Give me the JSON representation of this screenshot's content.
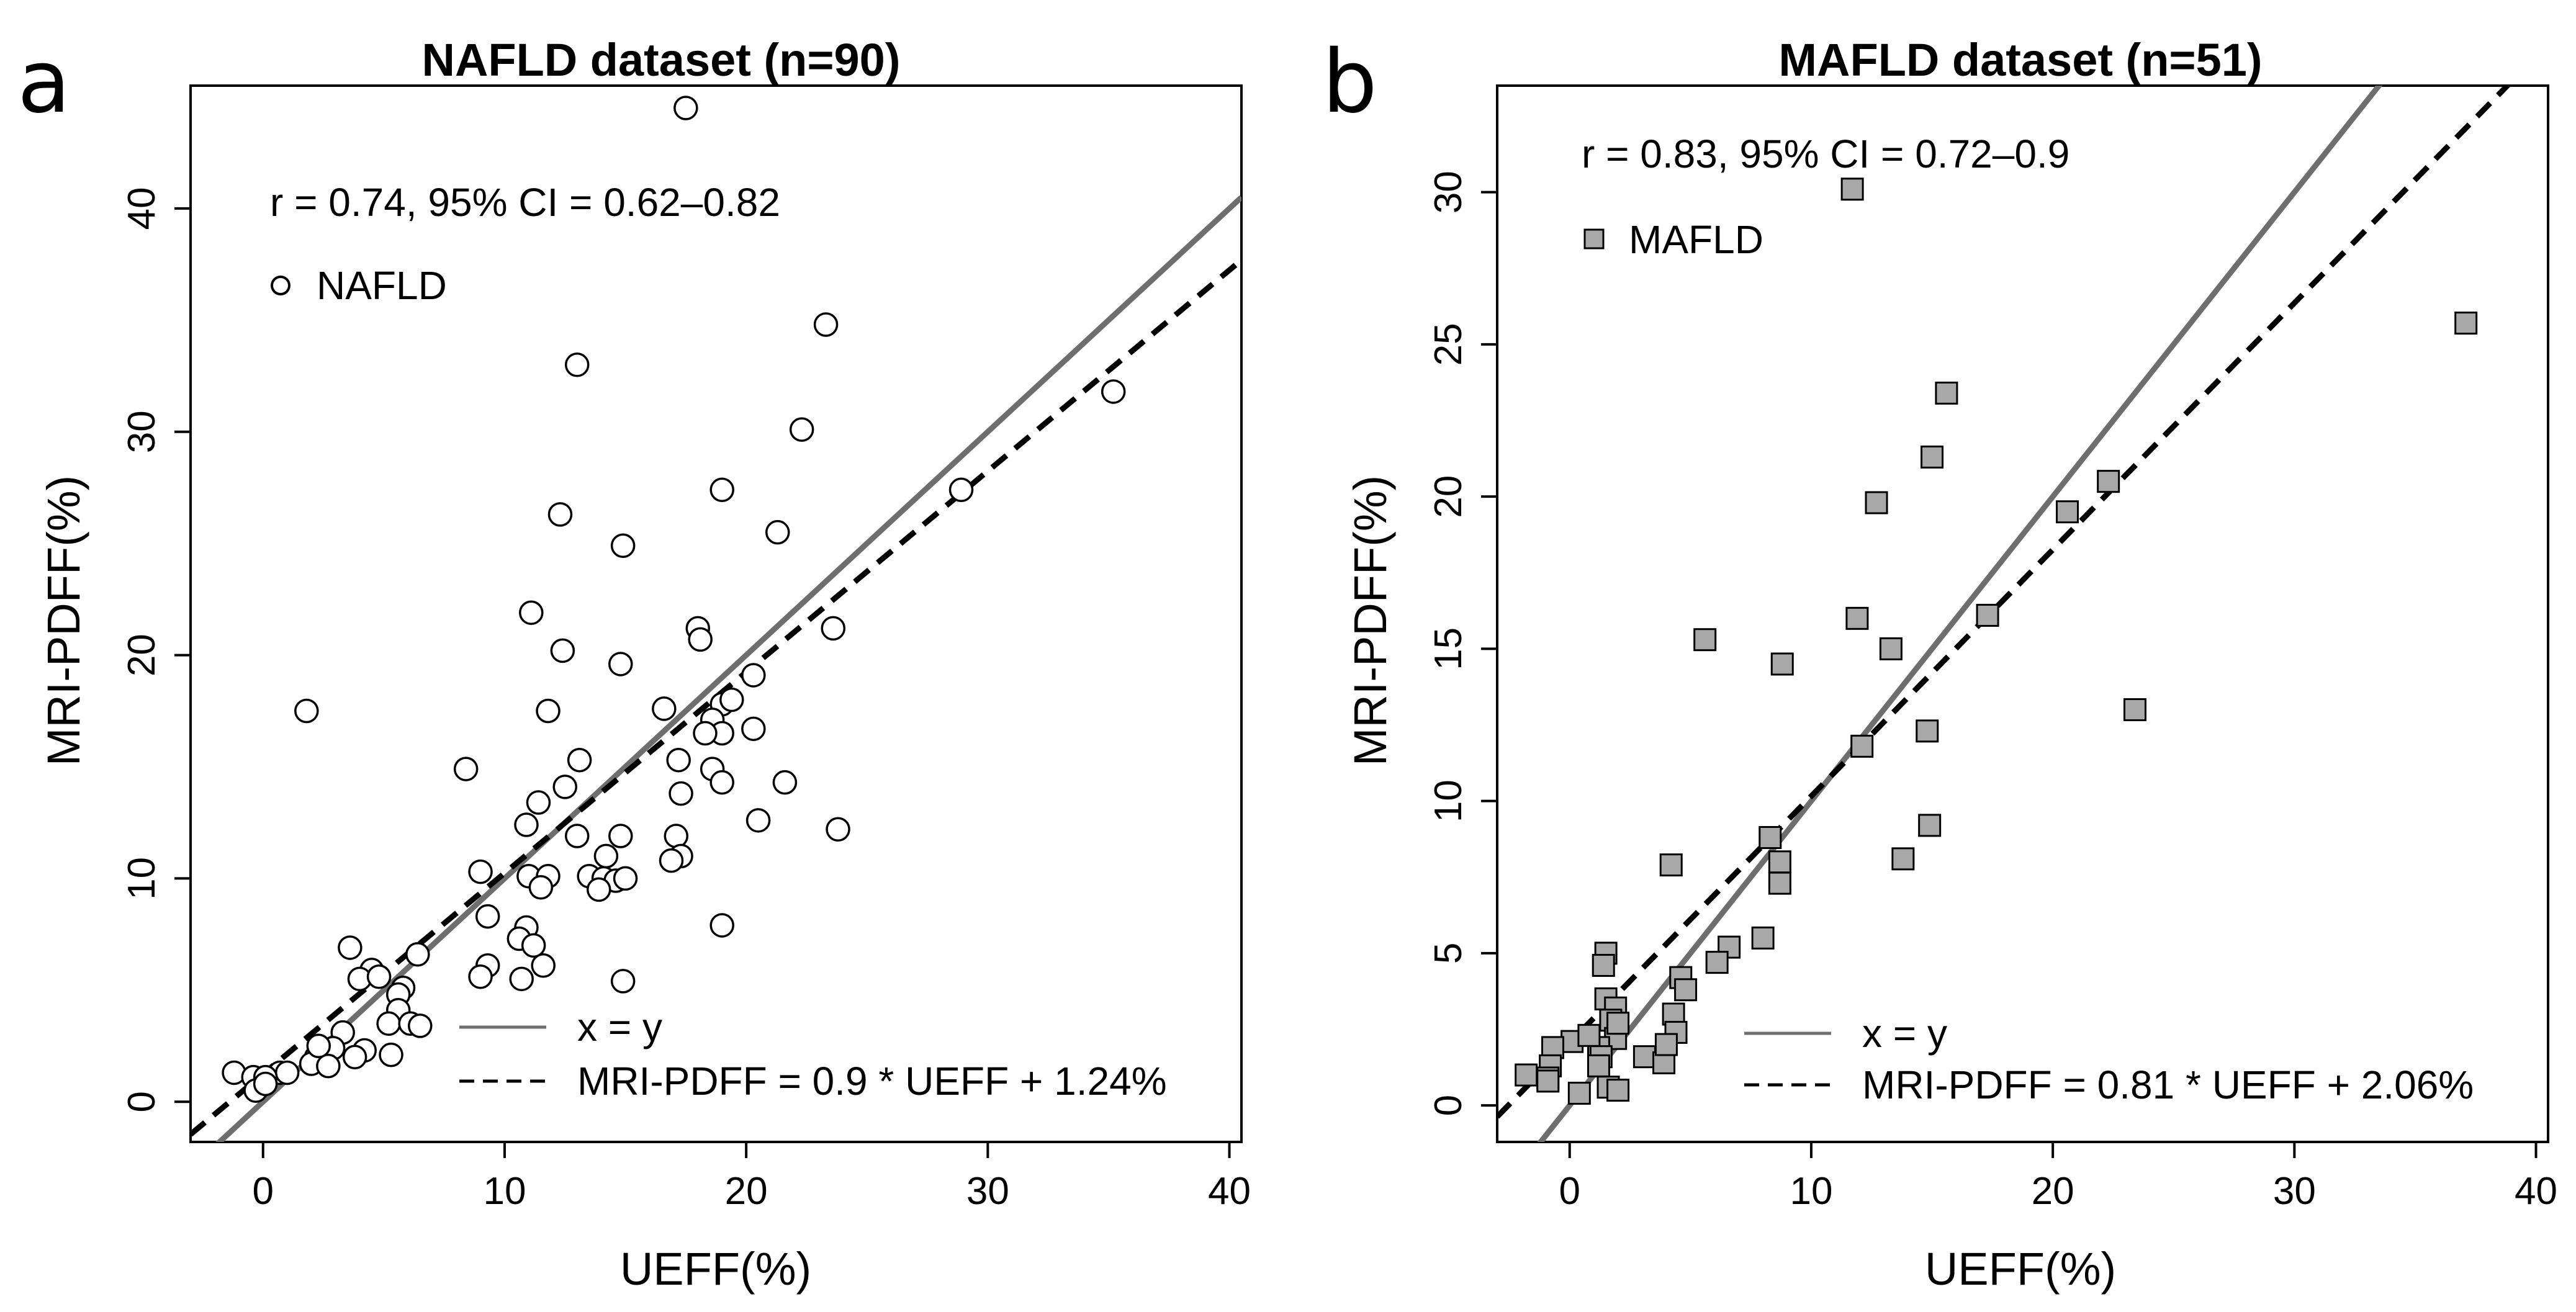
{
  "figure": {
    "panels": [
      {
        "letter": "a",
        "title": "NAFLD dataset (n=90)",
        "xlabel": "UEFF(%)",
        "ylabel": "MRI-PDFF(%)",
        "stat_text": "r = 0.74, 95% CI = 0.62–0.82",
        "series_legend": "NAFLD",
        "line_legend": {
          "identity": "x = y",
          "fit": "MRI-PDFF = 0.9 * UEFF + 1.24%"
        }
      },
      {
        "letter": "b",
        "title": "MAFLD dataset (n=51)",
        "xlabel": "UEFF(%)",
        "ylabel": "MRI-PDFF(%)",
        "stat_text": "r = 0.83, 95% CI = 0.72–0.9",
        "series_legend": "MAFLD",
        "line_legend": {
          "identity": "x = y",
          "fit": "MRI-PDFF = 0.81 * UEFF + 2.06%"
        }
      }
    ]
  },
  "chart_data": [
    {
      "type": "scatter",
      "title": "NAFLD dataset (n=90)",
      "xlabel": "UEFF(%)",
      "ylabel": "MRI-PDFF(%)",
      "xlim": [
        -3,
        40.5
      ],
      "ylim": [
        -1.8,
        45.5
      ],
      "xticks": [
        0,
        10,
        20,
        30,
        40
      ],
      "yticks": [
        0,
        10,
        20,
        30,
        40
      ],
      "grid": false,
      "legend_position": "top-left and bottom-right",
      "colors": {
        "points_fill": "#ffffff",
        "points_stroke": "#000000",
        "identity_line": "#6e6e6e",
        "fit_line": "#000000"
      },
      "series": [
        {
          "name": "NAFLD",
          "marker": "open-circle",
          "points": [
            [
              17.5,
              44.5
            ],
            [
              23.3,
              34.8
            ],
            [
              13.0,
              33.0
            ],
            [
              22.3,
              30.1
            ],
            [
              35.2,
              31.8
            ],
            [
              28.9,
              27.4
            ],
            [
              19.0,
              27.4
            ],
            [
              12.3,
              26.3
            ],
            [
              21.3,
              25.5
            ],
            [
              14.9,
              24.9
            ],
            [
              11.1,
              21.9
            ],
            [
              18.0,
              21.2
            ],
            [
              23.6,
              21.2
            ],
            [
              18.1,
              20.7
            ],
            [
              12.4,
              20.2
            ],
            [
              14.8,
              19.6
            ],
            [
              20.3,
              19.1
            ],
            [
              1.8,
              17.5
            ],
            [
              11.8,
              17.5
            ],
            [
              16.6,
              17.6
            ],
            [
              19.0,
              17.8
            ],
            [
              19.4,
              18.0
            ],
            [
              18.6,
              17.1
            ],
            [
              19.0,
              16.5
            ],
            [
              18.3,
              16.5
            ],
            [
              20.3,
              16.7
            ],
            [
              13.1,
              15.3
            ],
            [
              17.2,
              15.3
            ],
            [
              8.4,
              14.9
            ],
            [
              18.6,
              14.9
            ],
            [
              12.5,
              14.1
            ],
            [
              19.0,
              14.3
            ],
            [
              21.6,
              14.3
            ],
            [
              17.3,
              13.8
            ],
            [
              11.4,
              13.4
            ],
            [
              10.9,
              12.4
            ],
            [
              20.5,
              12.6
            ],
            [
              23.8,
              12.2
            ],
            [
              13.0,
              11.9
            ],
            [
              14.8,
              11.9
            ],
            [
              17.1,
              11.9
            ],
            [
              14.2,
              11.0
            ],
            [
              17.3,
              11.0
            ],
            [
              16.9,
              10.8
            ],
            [
              9.0,
              10.3
            ],
            [
              11.0,
              10.1
            ],
            [
              11.8,
              10.1
            ],
            [
              13.5,
              10.1
            ],
            [
              14.1,
              10.0
            ],
            [
              14.6,
              9.9
            ],
            [
              15.0,
              10.0
            ],
            [
              11.5,
              9.6
            ],
            [
              13.9,
              9.5
            ],
            [
              9.3,
              8.3
            ],
            [
              19.0,
              7.9
            ],
            [
              10.9,
              7.8
            ],
            [
              10.6,
              7.3
            ],
            [
              11.2,
              7.0
            ],
            [
              6.4,
              6.6
            ],
            [
              3.6,
              6.9
            ],
            [
              11.6,
              6.1
            ],
            [
              9.3,
              6.1
            ],
            [
              4.5,
              5.9
            ],
            [
              9.0,
              5.6
            ],
            [
              4.0,
              5.5
            ],
            [
              4.8,
              5.6
            ],
            [
              10.7,
              5.5
            ],
            [
              14.9,
              5.4
            ],
            [
              5.8,
              5.1
            ],
            [
              5.6,
              4.8
            ],
            [
              5.6,
              4.1
            ],
            [
              5.2,
              3.5
            ],
            [
              6.1,
              3.5
            ],
            [
              6.5,
              3.4
            ],
            [
              3.3,
              3.1
            ],
            [
              2.9,
              2.4
            ],
            [
              4.2,
              2.3
            ],
            [
              5.3,
              2.1
            ],
            [
              2.2,
              2.0
            ],
            [
              3.8,
              2.0
            ],
            [
              2.0,
              1.7
            ],
            [
              2.7,
              1.6
            ],
            [
              0.7,
              1.3
            ],
            [
              1.0,
              1.3
            ],
            [
              -1.2,
              1.3
            ],
            [
              -0.4,
              1.1
            ],
            [
              0.1,
              1.1
            ],
            [
              -0.3,
              0.5
            ],
            [
              0.1,
              0.8
            ],
            [
              2.3,
              2.5
            ]
          ]
        }
      ],
      "lines": [
        {
          "name": "x = y",
          "slope": 1,
          "intercept": 0,
          "style": "solid"
        },
        {
          "name": "MRI-PDFF = 0.9 * UEFF + 1.24%",
          "slope": 0.9,
          "intercept": 1.24,
          "style": "dashed"
        }
      ]
    },
    {
      "type": "scatter",
      "title": "MAFLD dataset (n=51)",
      "xlabel": "UEFF(%)",
      "ylabel": "MRI-PDFF(%)",
      "xlim": [
        -3,
        40.5
      ],
      "ylim": [
        -1.2,
        33.5
      ],
      "xticks": [
        0,
        10,
        20,
        30,
        40
      ],
      "yticks": [
        0,
        5,
        10,
        15,
        20,
        25,
        30
      ],
      "grid": false,
      "legend_position": "top-left and bottom-right",
      "colors": {
        "points_fill": "#a8a8a8",
        "points_stroke": "#000000",
        "identity_line": "#6e6e6e",
        "fit_line": "#000000"
      },
      "series": [
        {
          "name": "MAFLD",
          "marker": "filled-square",
          "points": [
            [
              11.7,
              30.1
            ],
            [
              37.1,
              25.7
            ],
            [
              15.6,
              23.4
            ],
            [
              15.0,
              21.3
            ],
            [
              12.7,
              19.8
            ],
            [
              20.6,
              19.5
            ],
            [
              22.3,
              20.5
            ],
            [
              23.4,
              13.0
            ],
            [
              17.3,
              16.1
            ],
            [
              11.9,
              16.0
            ],
            [
              5.6,
              15.3
            ],
            [
              13.3,
              15.0
            ],
            [
              8.8,
              14.5
            ],
            [
              14.8,
              12.3
            ],
            [
              12.1,
              11.8
            ],
            [
              14.9,
              9.2
            ],
            [
              13.8,
              8.1
            ],
            [
              8.3,
              8.8
            ],
            [
              8.7,
              8.0
            ],
            [
              8.7,
              7.3
            ],
            [
              4.2,
              7.9
            ],
            [
              8.0,
              5.5
            ],
            [
              6.6,
              5.2
            ],
            [
              6.1,
              4.7
            ],
            [
              1.5,
              5.0
            ],
            [
              1.4,
              4.6
            ],
            [
              4.6,
              4.2
            ],
            [
              4.8,
              3.8
            ],
            [
              1.5,
              3.5
            ],
            [
              1.9,
              3.2
            ],
            [
              4.3,
              3.0
            ],
            [
              3.1,
              1.6
            ],
            [
              3.9,
              1.4
            ],
            [
              1.7,
              2.8
            ],
            [
              1.9,
              2.2
            ],
            [
              4.4,
              2.4
            ],
            [
              1.2,
              1.9
            ],
            [
              1.3,
              1.6
            ],
            [
              0.1,
              2.1
            ],
            [
              -0.7,
              1.9
            ],
            [
              -0.8,
              1.3
            ],
            [
              -1.8,
              1.0
            ],
            [
              -0.9,
              0.9
            ],
            [
              -0.9,
              0.8
            ],
            [
              1.6,
              0.6
            ],
            [
              2.0,
              0.5
            ],
            [
              0.4,
              0.4
            ],
            [
              2.0,
              2.7
            ],
            [
              1.2,
              1.3
            ],
            [
              4.0,
              2.0
            ],
            [
              0.8,
              2.3
            ]
          ]
        }
      ],
      "lines": [
        {
          "name": "x = y",
          "slope": 1,
          "intercept": 0,
          "style": "solid"
        },
        {
          "name": "MRI-PDFF = 0.81 * UEFF + 2.06%",
          "slope": 0.81,
          "intercept": 2.06,
          "style": "dashed"
        }
      ]
    }
  ]
}
